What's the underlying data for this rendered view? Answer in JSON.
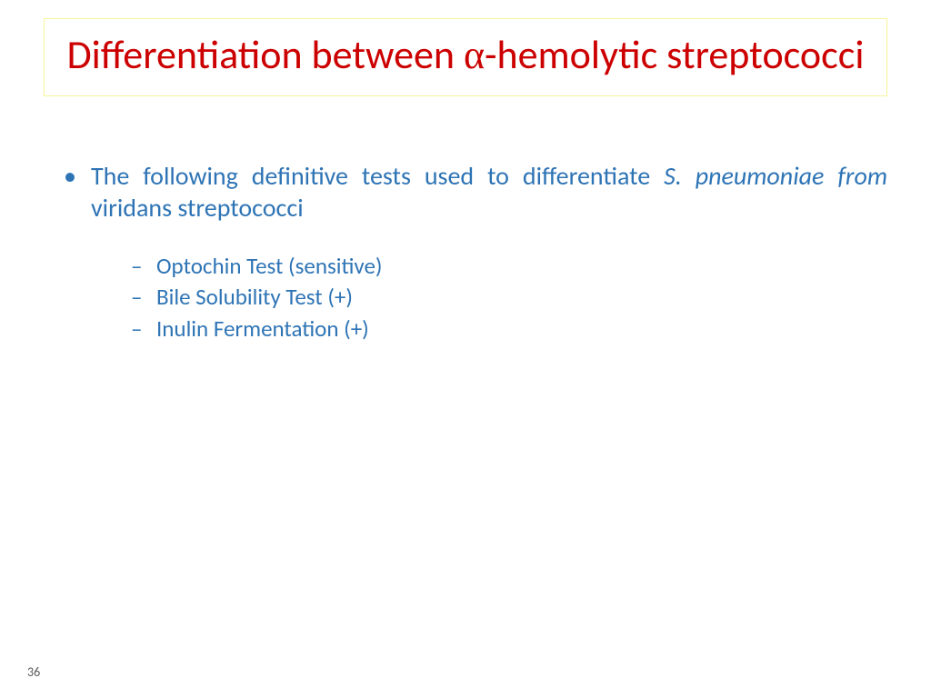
{
  "title": {
    "pre": "Differentiation between ",
    "alpha": "α",
    "post": "-hemolytic streptococci",
    "color": "#cc0000",
    "border_color": "#f7f59a",
    "fontsize": 44
  },
  "content": {
    "color": "#2e74b5",
    "main": {
      "text_pre": "The following definitive tests used to differentiate ",
      "italic": "S. pneumoniae from ",
      "text_post": "viridans streptococci",
      "fontsize": 28
    },
    "sub_items": [
      "Optochin Test  (sensitive)",
      "Bile Solubility Test (+)",
      "Inulin Fermentation (+)"
    ],
    "sub_fontsize": 25
  },
  "page_number": "36",
  "background_color": "#ffffff"
}
